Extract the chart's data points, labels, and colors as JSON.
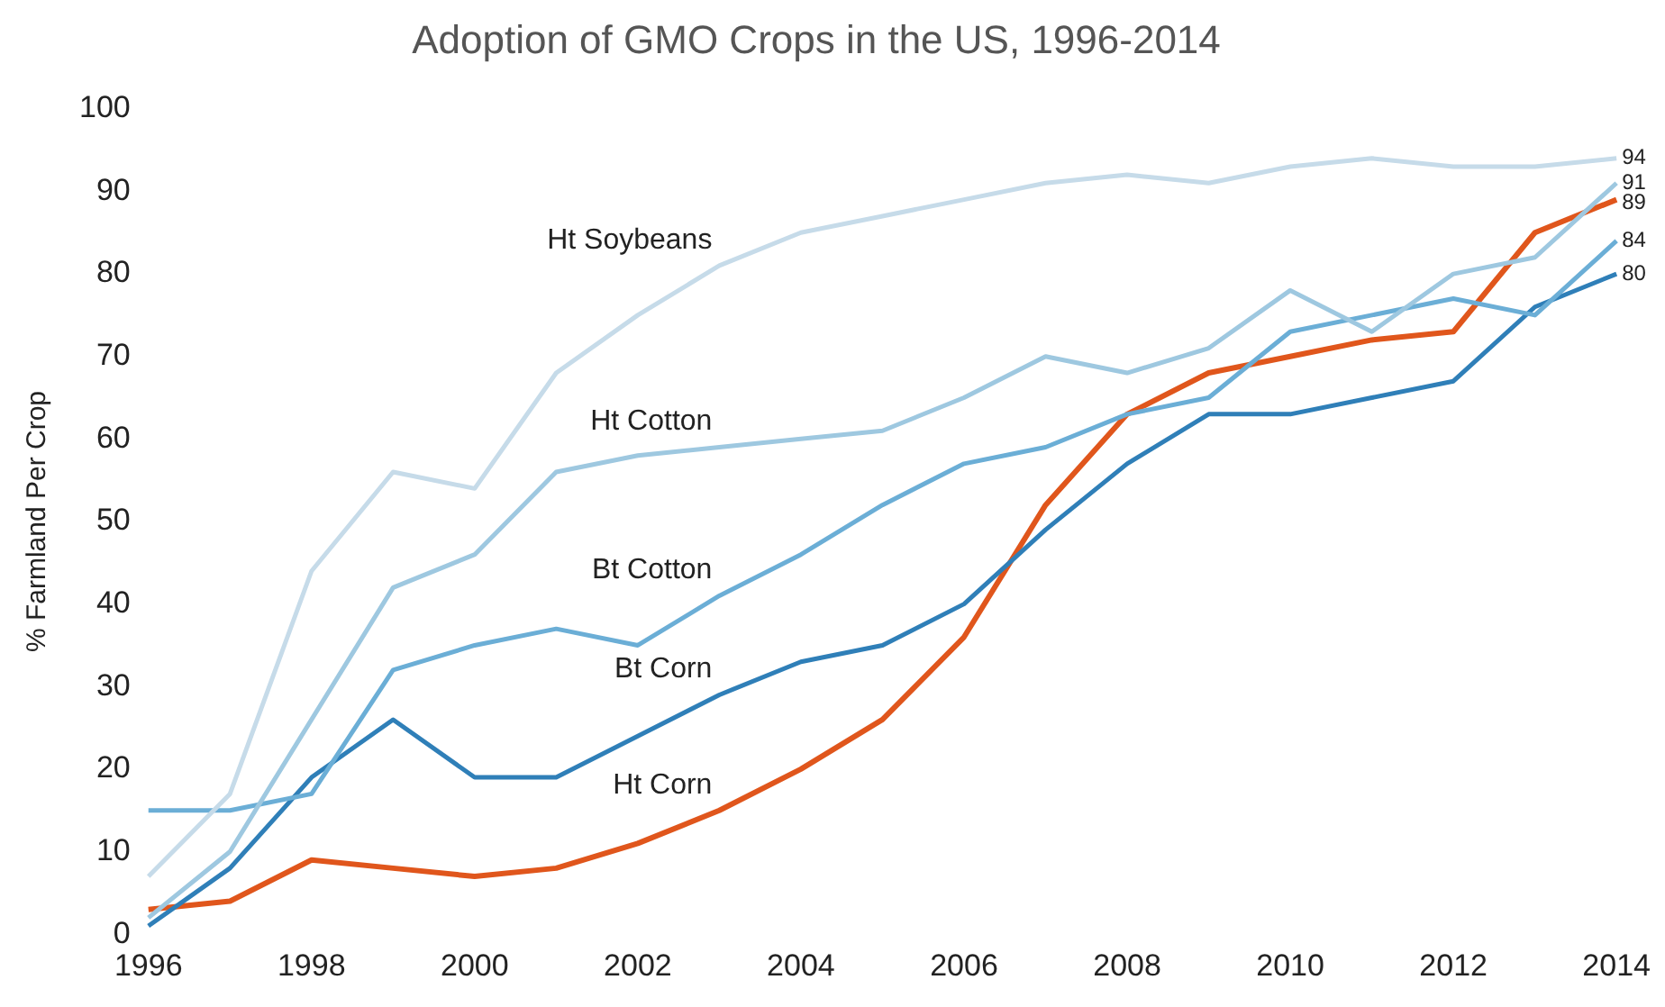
{
  "chart_data": {
    "type": "line",
    "title": "Adoption of GMO Crops in the US, 1996-2014",
    "ylabel": "% Farmland Per Crop",
    "categories": [
      "1996",
      null,
      "1998",
      null,
      "2000",
      null,
      "2002",
      null,
      "2004",
      null,
      "2006",
      null,
      "2008",
      null,
      "2010",
      null,
      "2012",
      null,
      "2014"
    ],
    "ylim": [
      0,
      100
    ],
    "yticks": [
      0,
      10,
      20,
      30,
      40,
      50,
      60,
      70,
      80,
      90,
      100
    ],
    "grid": false,
    "legend": false,
    "marker": "none",
    "line_style": "solid",
    "series": [
      {
        "name": "Ht Soybeans",
        "color": "#c6dbe9",
        "values": [
          7,
          17,
          44,
          56,
          54,
          68,
          75,
          81,
          85,
          87,
          89,
          91,
          92,
          91,
          93,
          94,
          93,
          93,
          94
        ],
        "value_labels": [
          null,
          null,
          null,
          null,
          null,
          null,
          null,
          null,
          null,
          null,
          null,
          null,
          null,
          null,
          null,
          null,
          null,
          null,
          "94"
        ]
      },
      {
        "name": "Ht Cotton",
        "color": "#9ec8e0",
        "values": [
          2,
          10,
          26,
          42,
          46,
          56,
          58,
          59,
          60,
          61,
          65,
          70,
          68,
          71,
          78,
          73,
          80,
          82,
          91
        ],
        "value_labels": [
          null,
          null,
          null,
          null,
          null,
          null,
          null,
          null,
          null,
          null,
          null,
          null,
          null,
          null,
          null,
          null,
          null,
          null,
          "91"
        ]
      },
      {
        "name": "Bt Cotton",
        "color": "#6baed6",
        "values": [
          15,
          15,
          17,
          32,
          35,
          37,
          35,
          41,
          46,
          52,
          57,
          59,
          63,
          65,
          73,
          75,
          77,
          75,
          84
        ],
        "value_labels": [
          null,
          null,
          null,
          null,
          null,
          null,
          null,
          null,
          null,
          null,
          null,
          null,
          null,
          null,
          null,
          null,
          null,
          null,
          "84"
        ]
      },
      {
        "name": "Bt Corn",
        "color": "#2f7fb8",
        "values": [
          1,
          8,
          19,
          26,
          19,
          19,
          24,
          29,
          33,
          35,
          40,
          49,
          57,
          63,
          63,
          65,
          67,
          76,
          80
        ],
        "value_labels": [
          null,
          null,
          null,
          null,
          null,
          null,
          null,
          null,
          null,
          null,
          null,
          null,
          null,
          null,
          null,
          null,
          null,
          null,
          "80"
        ]
      },
      {
        "name": "Ht Corn",
        "color": "#e0561c",
        "values": [
          3,
          4,
          9,
          8,
          7,
          8,
          11,
          15,
          20,
          26,
          36,
          52,
          63,
          68,
          70,
          72,
          73,
          85,
          89
        ],
        "value_labels": [
          null,
          null,
          null,
          null,
          null,
          null,
          null,
          null,
          null,
          null,
          null,
          null,
          null,
          null,
          null,
          null,
          null,
          null,
          "89"
        ]
      }
    ]
  }
}
